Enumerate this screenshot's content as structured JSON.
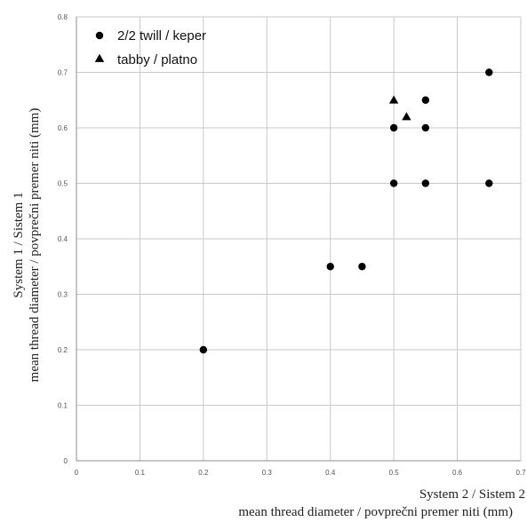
{
  "chart_data": {
    "type": "scatter",
    "x_axis_title": {
      "line1": "System 2 / Sistem 2",
      "line2": "mean thread diameter / povprečni premer niti (mm)"
    },
    "y_axis_title": {
      "line1": "System 1 / Sistem 1",
      "line2": "mean thread diameter / povprečni premer niti (mm)"
    },
    "xlim": [
      0,
      0.7
    ],
    "ylim": [
      0,
      0.8
    ],
    "x_ticks": [
      "0",
      "0.1",
      "0.2",
      "0.3",
      "0.4",
      "0.5",
      "0.6",
      "0.7"
    ],
    "y_ticks": [
      "0",
      "0.1",
      "0.2",
      "0.3",
      "0.4",
      "0.5",
      "0.6",
      "0.7",
      "0.8"
    ],
    "grid": true,
    "legend_position": "top-left",
    "series": [
      {
        "name": "2/2 twill / keper",
        "marker": "circle",
        "color": "#000000",
        "points": [
          {
            "x": 0.2,
            "y": 0.2
          },
          {
            "x": 0.4,
            "y": 0.35
          },
          {
            "x": 0.45,
            "y": 0.35
          },
          {
            "x": 0.5,
            "y": 0.5
          },
          {
            "x": 0.5,
            "y": 0.6
          },
          {
            "x": 0.55,
            "y": 0.5
          },
          {
            "x": 0.55,
            "y": 0.6
          },
          {
            "x": 0.55,
            "y": 0.65
          },
          {
            "x": 0.65,
            "y": 0.5
          },
          {
            "x": 0.65,
            "y": 0.7
          }
        ]
      },
      {
        "name": "tabby / platno",
        "marker": "triangle",
        "color": "#000000",
        "points": [
          {
            "x": 0.5,
            "y": 0.65
          },
          {
            "x": 0.52,
            "y": 0.62
          }
        ]
      }
    ],
    "colors": {
      "grid": "#c8c8c8",
      "axis": "#8c8c8c",
      "marker": "#000000"
    }
  }
}
